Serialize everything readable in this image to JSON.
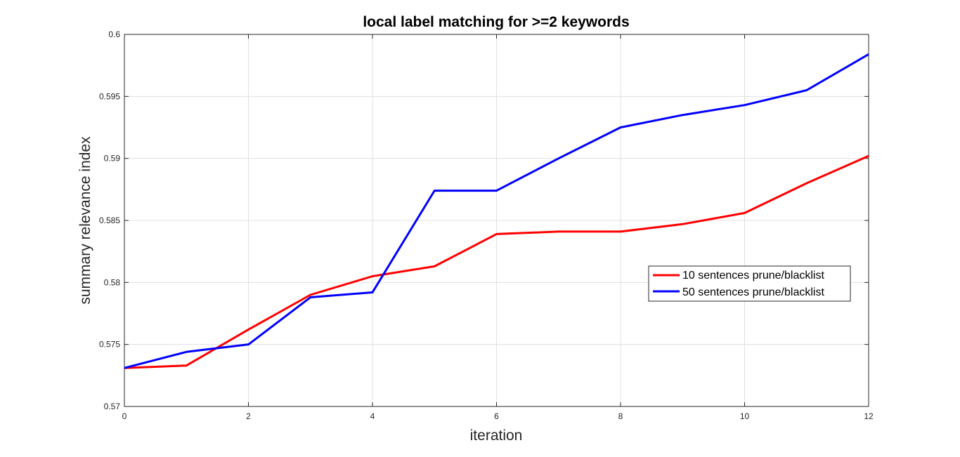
{
  "chart_data": {
    "type": "line",
    "title": "local label matching for >=2 keywords",
    "xlabel": "iteration",
    "ylabel": "summary relevance index",
    "xlim": [
      0,
      12
    ],
    "ylim": [
      0.57,
      0.6
    ],
    "x_ticks": [
      "0",
      "2",
      "4",
      "6",
      "8",
      "10",
      "12"
    ],
    "y_ticks": [
      "0.57",
      "0.575",
      "0.58",
      "0.585",
      "0.59",
      "0.595",
      "0.6"
    ],
    "grid": true,
    "legend_position": "right",
    "x": [
      0,
      1,
      2,
      3,
      4,
      5,
      6,
      7,
      8,
      9,
      10,
      11,
      12
    ],
    "series": [
      {
        "name": "10 sentences prune/blacklist",
        "color": "#ff0000",
        "values": [
          0.5731,
          0.5733,
          0.5762,
          0.579,
          0.5805,
          0.5813,
          0.5839,
          0.5841,
          0.5841,
          0.5847,
          0.5856,
          0.588,
          0.5902
        ]
      },
      {
        "name": "50 sentences prune/blacklist",
        "color": "#0000ff",
        "values": [
          0.5731,
          0.5744,
          0.575,
          0.5788,
          0.5792,
          0.5874,
          0.5874,
          0.59,
          0.5925,
          0.5935,
          0.5943,
          0.5955,
          0.5984
        ]
      }
    ]
  }
}
